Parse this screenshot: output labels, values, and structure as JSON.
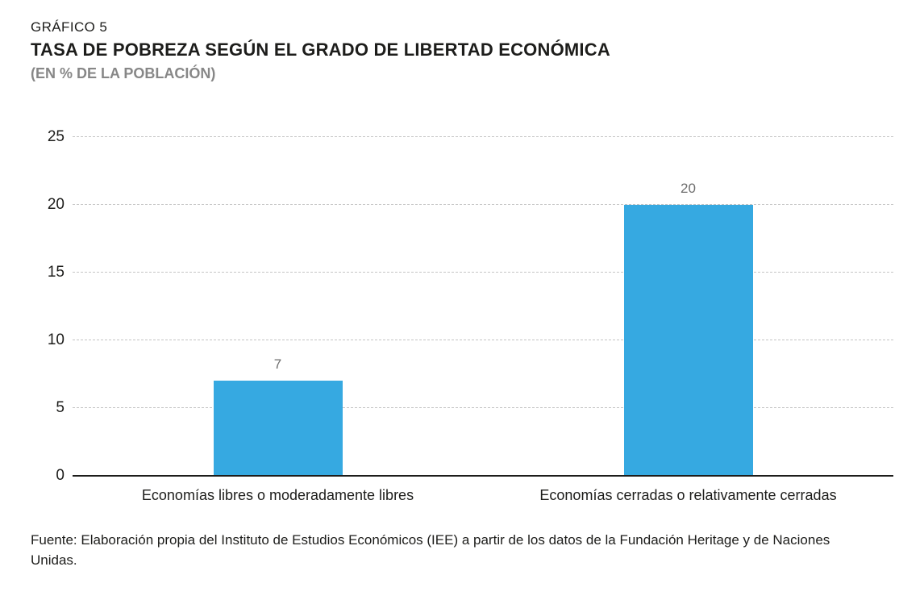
{
  "header": {
    "kicker": "GRÁFICO 5",
    "title": "TASA DE POBREZA SEGÚN EL GRADO DE LIBERTAD ECONÓMICA",
    "subtitle": "(EN % DE LA POBLACIÓN)"
  },
  "chart_data": {
    "type": "bar",
    "categories": [
      "Economías libres o moderadamente libres",
      "Economías cerradas o relativamente cerradas"
    ],
    "values": [
      7,
      20
    ],
    "title": "TASA DE POBREZA SEGÚN EL GRADO DE LIBERTAD ECONÓMICA",
    "subtitle": "(EN % DE LA POBLACIÓN)",
    "xlabel": "",
    "ylabel": "",
    "ylim": [
      0,
      25
    ],
    "yticks": [
      0,
      5,
      10,
      15,
      20,
      25
    ],
    "bar_color": "#36A9E1",
    "grid": "horizontal-dashed",
    "value_labels": true,
    "legend": "none"
  },
  "footer": {
    "source": "Fuente: Elaboración propia del Instituto de Estudios Económicos (IEE) a partir de los datos de la Fundación Heritage y de Naciones Unidas."
  }
}
